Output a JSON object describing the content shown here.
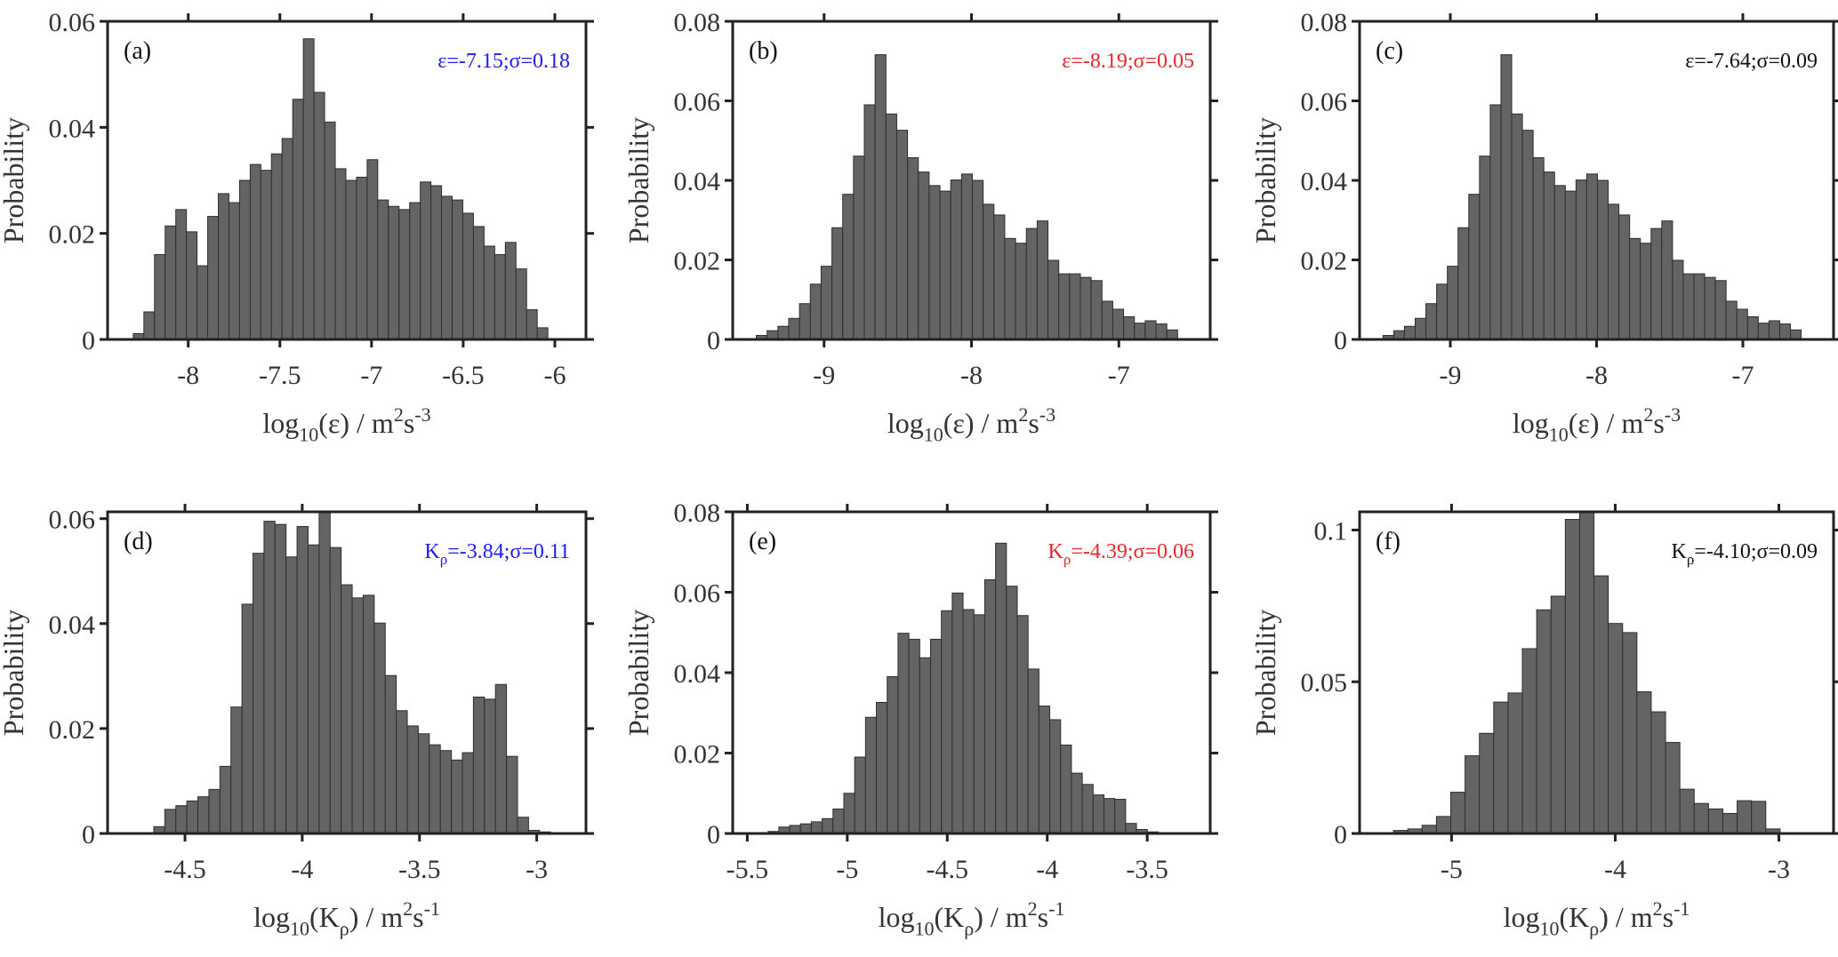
{
  "chart_data": [
    {
      "id": "a",
      "type": "bar",
      "panel_label": "(a)",
      "annotation": [
        {
          "t": "ε=-7.15;σ=0.18"
        }
      ],
      "annotation_color": "#1c1cf0",
      "ylabel": "Probability",
      "xlabel": [
        {
          "t": "log"
        },
        {
          "t": "10",
          "sub": true
        },
        {
          "t": "(ε) / m"
        },
        {
          "t": "2",
          "sup": true
        },
        {
          "t": "s"
        },
        {
          "t": "-3",
          "sup": true
        }
      ],
      "xlim": [
        -8.44,
        -5.83
      ],
      "ylim": [
        0,
        0.06
      ],
      "xticks": [
        -8,
        -7.5,
        -7,
        -6.5,
        -6
      ],
      "yticks": [
        0,
        0.02,
        0.04,
        0.06
      ],
      "bin_start": -8.3,
      "bin_width": 0.058,
      "values": [
        0.0011,
        0.0052,
        0.016,
        0.0214,
        0.0245,
        0.0203,
        0.0139,
        0.0232,
        0.0275,
        0.0258,
        0.03,
        0.033,
        0.0319,
        0.035,
        0.0379,
        0.0453,
        0.0567,
        0.0466,
        0.041,
        0.0322,
        0.03,
        0.0306,
        0.0339,
        0.0263,
        0.0251,
        0.0245,
        0.0258,
        0.0297,
        0.029,
        0.027,
        0.0263,
        0.0238,
        0.0213,
        0.0176,
        0.016,
        0.0183,
        0.0133,
        0.0056,
        0.0022
      ]
    },
    {
      "id": "b",
      "type": "bar",
      "panel_label": "(b)",
      "annotation": [
        {
          "t": "ε=-8.19;σ=0.05"
        }
      ],
      "annotation_color": "#e8262a",
      "ylabel": "Probability",
      "xlabel": [
        {
          "t": "log"
        },
        {
          "t": "10",
          "sub": true
        },
        {
          "t": "(ε) / m"
        },
        {
          "t": "2",
          "sup": true
        },
        {
          "t": "s"
        },
        {
          "t": "-3",
          "sup": true
        }
      ],
      "xlim": [
        -9.62,
        -6.38
      ],
      "ylim": [
        0,
        0.08
      ],
      "xticks": [
        -9,
        -8,
        -7
      ],
      "yticks": [
        0,
        0.02,
        0.04,
        0.06,
        0.08
      ],
      "bin_start": -9.46,
      "bin_width": 0.0733,
      "values": [
        0.001,
        0.0022,
        0.0033,
        0.0053,
        0.009,
        0.0139,
        0.0184,
        0.0281,
        0.0365,
        0.0461,
        0.059,
        0.0716,
        0.0567,
        0.0526,
        0.0457,
        0.0421,
        0.0387,
        0.0373,
        0.0401,
        0.0416,
        0.04,
        0.034,
        0.0313,
        0.0254,
        0.0242,
        0.0279,
        0.0298,
        0.0199,
        0.0165,
        0.0165,
        0.0156,
        0.0148,
        0.0096,
        0.0076,
        0.0057,
        0.0041,
        0.0047,
        0.0039,
        0.0024
      ]
    },
    {
      "id": "c",
      "type": "bar",
      "panel_label": "(c)",
      "annotation": [
        {
          "t": "ε=-7.64;σ=0.09"
        }
      ],
      "annotation_color": "#111111",
      "ylabel": "Probability",
      "xlabel": [
        {
          "t": "log"
        },
        {
          "t": "10",
          "sub": true
        },
        {
          "t": "(ε) / m"
        },
        {
          "t": "2",
          "sup": true
        },
        {
          "t": "s"
        },
        {
          "t": "-3",
          "sup": true
        }
      ],
      "xlim": [
        -9.62,
        -6.38
      ],
      "ylim": [
        0,
        0.08
      ],
      "xticks": [
        -9,
        -8,
        -7
      ],
      "yticks": [
        0,
        0.02,
        0.04,
        0.06,
        0.08
      ],
      "bin_start": -9.46,
      "bin_width": 0.0733,
      "values": [
        0.001,
        0.0022,
        0.0033,
        0.0053,
        0.009,
        0.0139,
        0.0184,
        0.0281,
        0.0365,
        0.0461,
        0.059,
        0.0716,
        0.0567,
        0.0526,
        0.0457,
        0.0421,
        0.0387,
        0.0373,
        0.0401,
        0.0416,
        0.04,
        0.034,
        0.0313,
        0.0254,
        0.0242,
        0.0279,
        0.0298,
        0.0199,
        0.0165,
        0.0165,
        0.0156,
        0.0148,
        0.0096,
        0.0076,
        0.0057,
        0.0041,
        0.0047,
        0.0039,
        0.0024
      ]
    },
    {
      "id": "d",
      "type": "bar",
      "panel_label": "(d)",
      "annotation": [
        {
          "t": "K"
        },
        {
          "t": "ρ",
          "sub": true
        },
        {
          "t": "=-3.84;σ=0.11"
        }
      ],
      "annotation_color": "#1c1cf0",
      "ylabel": "Probability",
      "xlabel": [
        {
          "t": "log"
        },
        {
          "t": "10",
          "sub": true
        },
        {
          "t": "(K"
        },
        {
          "t": "ρ",
          "sub": true
        },
        {
          "t": ") / m"
        },
        {
          "t": "2",
          "sup": true
        },
        {
          "t": "s"
        },
        {
          "t": "-1",
          "sup": true
        }
      ],
      "xlim": [
        -4.83,
        -2.79
      ],
      "ylim": [
        0,
        0.0613
      ],
      "xticks": [
        -4.5,
        -4,
        -3.5,
        -3
      ],
      "yticks": [
        0,
        0.02,
        0.04,
        0.06
      ],
      "bin_start": -4.633,
      "bin_width": 0.047,
      "values": [
        0.0013,
        0.0046,
        0.0053,
        0.0062,
        0.007,
        0.0084,
        0.0128,
        0.0241,
        0.0437,
        0.0534,
        0.0595,
        0.0589,
        0.0527,
        0.0585,
        0.055,
        0.062,
        0.0545,
        0.0474,
        0.0449,
        0.0454,
        0.0401,
        0.0301,
        0.0234,
        0.0205,
        0.019,
        0.0169,
        0.0158,
        0.014,
        0.0154,
        0.026,
        0.0256,
        0.0284,
        0.0147,
        0.0031,
        0.0006,
        0.0003
      ]
    },
    {
      "id": "e",
      "type": "bar",
      "panel_label": "(e)",
      "annotation": [
        {
          "t": "K"
        },
        {
          "t": "ρ",
          "sub": true
        },
        {
          "t": "=-4.39;σ=0.06"
        }
      ],
      "annotation_color": "#e8262a",
      "ylabel": "Probability",
      "xlabel": [
        {
          "t": "log"
        },
        {
          "t": "10",
          "sub": true
        },
        {
          "t": "(K"
        },
        {
          "t": "ρ",
          "sub": true
        },
        {
          "t": ") / m"
        },
        {
          "t": "2",
          "sup": true
        },
        {
          "t": "s"
        },
        {
          "t": "-1",
          "sup": true
        }
      ],
      "xlim": [
        -5.573,
        -3.185
      ],
      "ylim": [
        0,
        0.08
      ],
      "xticks": [
        -5.5,
        -5,
        -4.5,
        -4,
        -3.5
      ],
      "yticks": [
        0,
        0.02,
        0.04,
        0.06,
        0.08
      ],
      "bin_start": -5.505,
      "bin_width": 0.0542,
      "values": [
        0.0002,
        0.0002,
        0.0005,
        0.0016,
        0.002,
        0.0024,
        0.0029,
        0.0037,
        0.0061,
        0.01,
        0.019,
        0.0289,
        0.0326,
        0.039,
        0.0498,
        0.0483,
        0.0437,
        0.0483,
        0.0554,
        0.0598,
        0.0557,
        0.0544,
        0.0631,
        0.0722,
        0.0615,
        0.0542,
        0.0409,
        0.0317,
        0.0283,
        0.022,
        0.015,
        0.0122,
        0.0096,
        0.0087,
        0.0085,
        0.0025,
        0.001,
        0.0004
      ]
    },
    {
      "id": "f",
      "type": "bar",
      "panel_label": "(f)",
      "annotation": [
        {
          "t": "K"
        },
        {
          "t": "ρ",
          "sub": true
        },
        {
          "t": "=-4.10;σ=0.09"
        }
      ],
      "annotation_color": "#111111",
      "ylabel": "Probability",
      "xlabel": [
        {
          "t": "log"
        },
        {
          "t": "10",
          "sub": true
        },
        {
          "t": "(K"
        },
        {
          "t": "ρ",
          "sub": true
        },
        {
          "t": ") / m"
        },
        {
          "t": "2",
          "sup": true
        },
        {
          "t": "s"
        },
        {
          "t": "-1",
          "sup": true
        }
      ],
      "xlim": [
        -5.562,
        -2.666
      ],
      "ylim": [
        0,
        0.106
      ],
      "xticks": [
        -5,
        -4,
        -3
      ],
      "yticks": [
        0,
        0.05,
        0.1
      ],
      "bin_start": -5.355,
      "bin_width": 0.0875,
      "values": [
        0.001,
        0.0015,
        0.0027,
        0.0056,
        0.0136,
        0.0256,
        0.033,
        0.0433,
        0.0463,
        0.0609,
        0.0737,
        0.0782,
        0.1035,
        0.107,
        0.0849,
        0.0692,
        0.0662,
        0.0467,
        0.0401,
        0.03,
        0.0146,
        0.0099,
        0.0081,
        0.0066,
        0.0108,
        0.0106,
        0.0015
      ]
    }
  ]
}
